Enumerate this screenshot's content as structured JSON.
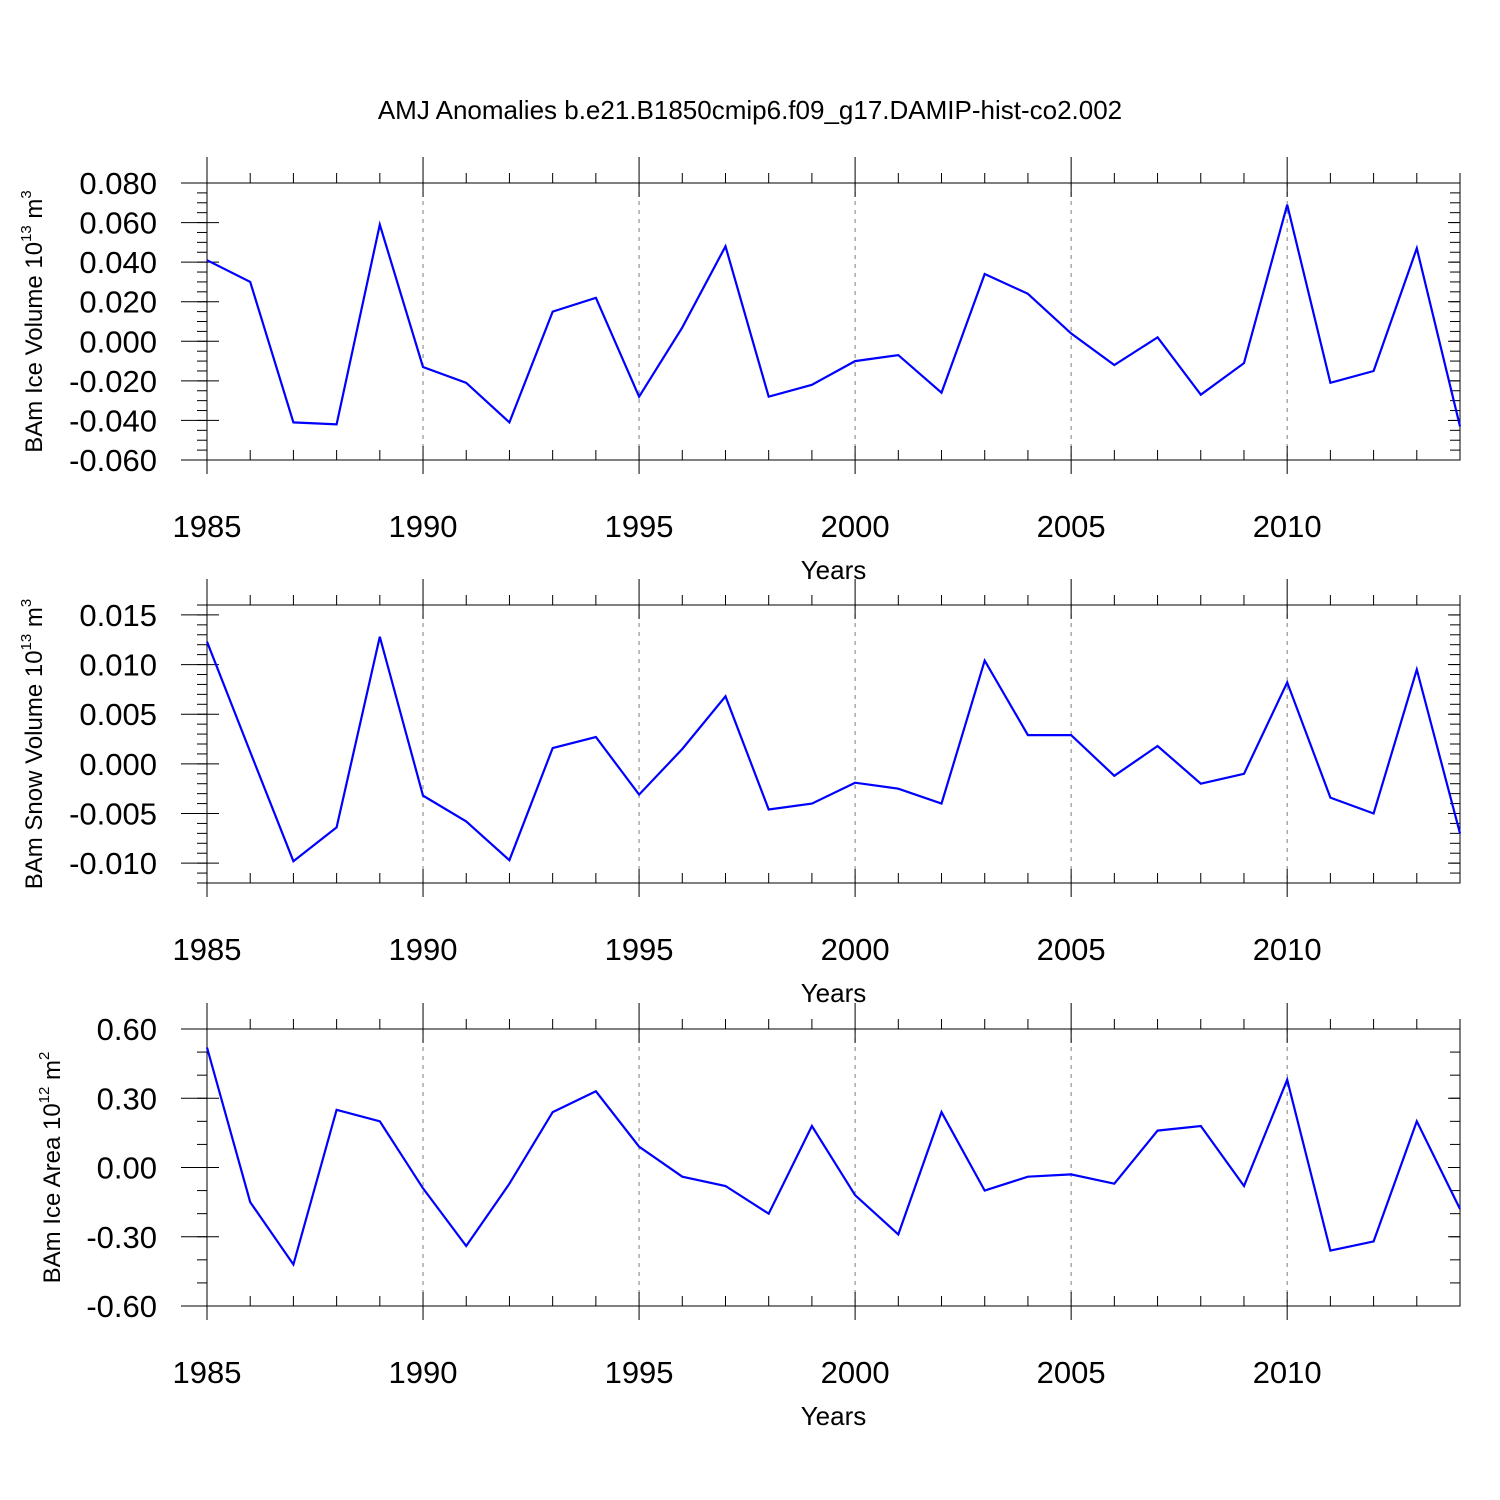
{
  "title": "AMJ Anomalies b.e21.B1850cmip6.f09_g17.DAMIP-hist-co2.002",
  "chart_data": [
    {
      "type": "line",
      "ylabel_main": "BAm Ice Volume 10",
      "ylabel_exp": "13",
      "ylabel_unit": " m",
      "ylabel_unit_exp": "3",
      "xlabel": "Years",
      "xlim": [
        1985,
        2014
      ],
      "ylim": [
        -0.06,
        0.08
      ],
      "yticks": [
        "0.080",
        "0.060",
        "0.040",
        "0.020",
        "0.000",
        "-0.020",
        "-0.040",
        "-0.060"
      ],
      "xticks": [
        "1985",
        "1990",
        "1995",
        "2000",
        "2005",
        "2010"
      ],
      "grid": "dashed vertical at major x ticks",
      "series": [
        {
          "color": "#0000ff",
          "x": [
            1985,
            1986,
            1987,
            1988,
            1989,
            1990,
            1991,
            1992,
            1993,
            1994,
            1995,
            1996,
            1997,
            1998,
            1999,
            2000,
            2001,
            2002,
            2003,
            2004,
            2005,
            2006,
            2007,
            2008,
            2009,
            2010,
            2011,
            2012,
            2013,
            2014
          ],
          "values": [
            0.041,
            0.03,
            -0.041,
            -0.042,
            0.059,
            -0.013,
            -0.021,
            -0.041,
            0.015,
            0.022,
            -0.028,
            0.007,
            0.048,
            -0.028,
            -0.022,
            -0.01,
            -0.007,
            -0.026,
            0.034,
            0.024,
            0.004,
            -0.012,
            0.002,
            -0.027,
            -0.011,
            0.069,
            -0.021,
            -0.015,
            0.047,
            -0.043
          ]
        }
      ]
    },
    {
      "type": "line",
      "ylabel_main": "BAm Snow Volume 10",
      "ylabel_exp": "13",
      "ylabel_unit": " m",
      "ylabel_unit_exp": "3",
      "xlabel": "Years",
      "xlim": [
        1985,
        2014
      ],
      "ylim": [
        -0.012,
        0.016
      ],
      "yticks": [
        "0.015",
        "0.010",
        "0.005",
        "0.000",
        "-0.005",
        "-0.010"
      ],
      "xticks": [
        "1985",
        "1990",
        "1995",
        "2000",
        "2005",
        "2010"
      ],
      "grid": "dashed vertical at major x ticks",
      "series": [
        {
          "color": "#0000ff",
          "x": [
            1985,
            1986,
            1987,
            1988,
            1989,
            1990,
            1991,
            1992,
            1993,
            1994,
            1995,
            1996,
            1997,
            1998,
            1999,
            2000,
            2001,
            2002,
            2003,
            2004,
            2005,
            2006,
            2007,
            2008,
            2009,
            2010,
            2011,
            2012,
            2013,
            2014
          ],
          "values": [
            0.0123,
            0.0012,
            -0.0098,
            -0.0064,
            0.0128,
            -0.0032,
            -0.0058,
            -0.0097,
            0.0016,
            0.0027,
            -0.0031,
            0.0015,
            0.0068,
            -0.0046,
            -0.004,
            -0.0019,
            -0.0025,
            -0.004,
            0.0104,
            0.0029,
            0.0029,
            -0.0012,
            0.0018,
            -0.002,
            -0.001,
            0.0082,
            -0.0034,
            -0.005,
            0.0095,
            -0.007
          ]
        }
      ]
    },
    {
      "type": "line",
      "ylabel_main": "BAm Ice Area 10",
      "ylabel_exp": "12",
      "ylabel_unit": " m",
      "ylabel_unit_exp": "2",
      "xlabel": "Years",
      "xlim": [
        1985,
        2014
      ],
      "ylim": [
        -0.6,
        0.6
      ],
      "yticks": [
        "0.60",
        "0.30",
        "0.00",
        "-0.30",
        "-0.60"
      ],
      "xticks": [
        "1985",
        "1990",
        "1995",
        "2000",
        "2005",
        "2010"
      ],
      "grid": "dashed vertical at major x ticks",
      "series": [
        {
          "color": "#0000ff",
          "x": [
            1985,
            1986,
            1987,
            1988,
            1989,
            1990,
            1991,
            1992,
            1993,
            1994,
            1995,
            1996,
            1997,
            1998,
            1999,
            2000,
            2001,
            2002,
            2003,
            2004,
            2005,
            2006,
            2007,
            2008,
            2009,
            2010,
            2011,
            2012,
            2013,
            2014
          ],
          "values": [
            0.52,
            -0.15,
            -0.42,
            0.25,
            0.2,
            -0.09,
            -0.34,
            -0.07,
            0.24,
            0.33,
            0.09,
            -0.04,
            -0.08,
            -0.2,
            0.18,
            -0.12,
            -0.29,
            0.24,
            -0.1,
            -0.04,
            -0.03,
            -0.07,
            0.16,
            0.18,
            -0.08,
            0.38,
            -0.36,
            -0.32,
            0.2,
            -0.18
          ]
        }
      ]
    }
  ]
}
